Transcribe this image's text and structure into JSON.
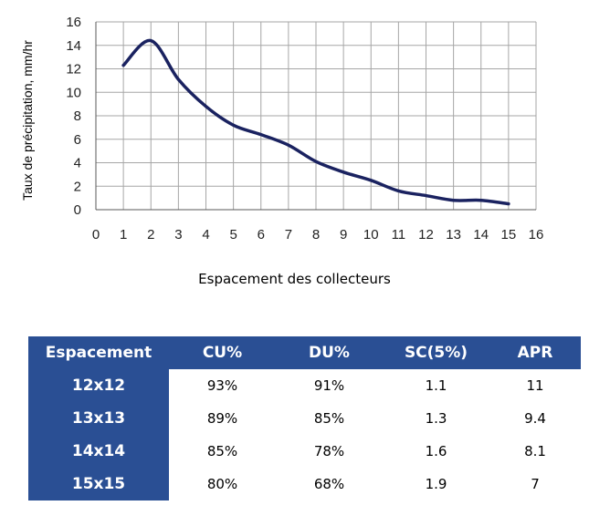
{
  "chart_data": {
    "type": "line",
    "ylabel": "Taux de précipitation, mm/hr",
    "xlabel": "Espacement des collecteurs",
    "xlim": [
      0,
      16
    ],
    "ylim": [
      0,
      16
    ],
    "x_ticks": [
      "0",
      "1",
      "2",
      "3",
      "4",
      "5",
      "6",
      "7",
      "8",
      "9",
      "10",
      "11",
      "12",
      "13",
      "14",
      "15",
      "16"
    ],
    "y_ticks": [
      "0",
      "2",
      "4",
      "6",
      "8",
      "10",
      "12",
      "14",
      "16"
    ],
    "grid": true,
    "line_color": "#1a2260",
    "series": [
      {
        "x": [
          1,
          2,
          3,
          4,
          5,
          6,
          7,
          8,
          9,
          10,
          11,
          12,
          13,
          14,
          15
        ],
        "y": [
          12.3,
          14.4,
          11.1,
          8.8,
          7.2,
          6.4,
          5.5,
          4.1,
          3.2,
          2.5,
          1.6,
          1.2,
          0.8,
          0.8,
          0.5
        ]
      }
    ]
  },
  "table": {
    "header_color": "#2a4f94",
    "headers": [
      "Espacement",
      "CU%",
      "DU%",
      "SC(5%)",
      "APR"
    ],
    "rows": [
      [
        "12x12",
        "93%",
        "91%",
        "1.1",
        "11"
      ],
      [
        "13x13",
        "89%",
        "85%",
        "1.3",
        "9.4"
      ],
      [
        "14x14",
        "85%",
        "78%",
        "1.6",
        "8.1"
      ],
      [
        "15x15",
        "80%",
        "68%",
        "1.9",
        "7"
      ]
    ]
  }
}
